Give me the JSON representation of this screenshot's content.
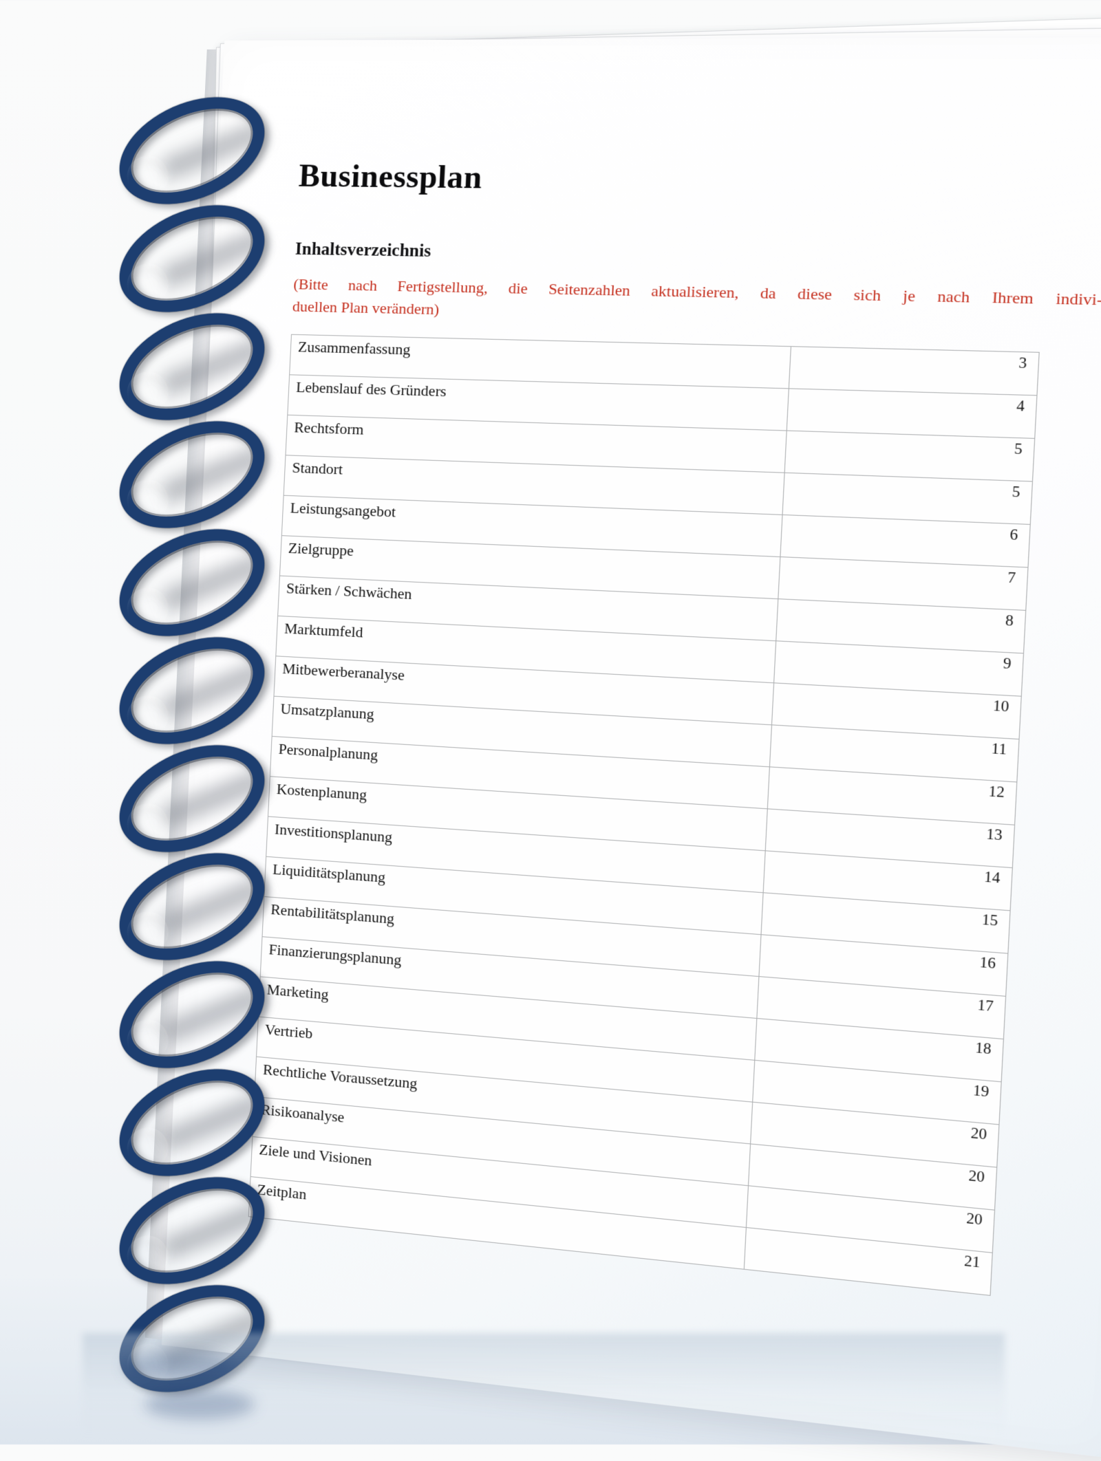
{
  "document": {
    "title": "Businessplan",
    "toc_heading": "Inhaltsverzeichnis",
    "note": {
      "line1": "(Bitte nach Fertigstellung, die Seitenzahlen aktualisieren, da diese sich je nach Ihrem indivi-",
      "line2": "duellen Plan verändern)",
      "color": "#c5301f"
    }
  },
  "toc": {
    "entries": [
      {
        "label": "Zusammenfassung",
        "page": "3"
      },
      {
        "label": "Lebenslauf des Gründers",
        "page": "4"
      },
      {
        "label": "Rechtsform",
        "page": "5"
      },
      {
        "label": "Standort",
        "page": "5"
      },
      {
        "label": "Leistungsangebot",
        "page": "6"
      },
      {
        "label": "Zielgruppe",
        "page": "7"
      },
      {
        "label": "Stärken / Schwächen",
        "page": "8"
      },
      {
        "label": "Marktumfeld",
        "page": "9"
      },
      {
        "label": "Mitbewerberanalyse",
        "page": "10"
      },
      {
        "label": "Umsatzplanung",
        "page": "11"
      },
      {
        "label": "Personalplanung",
        "page": "12"
      },
      {
        "label": "Kostenplanung",
        "page": "13"
      },
      {
        "label": "Investitionsplanung",
        "page": "14"
      },
      {
        "label": "Liquiditätsplanung",
        "page": "15"
      },
      {
        "label": "Rentabilitätsplanung",
        "page": "16"
      },
      {
        "label": "Finanzierungsplanung",
        "page": "17"
      },
      {
        "label": "Marketing",
        "page": "18"
      },
      {
        "label": "Vertrieb",
        "page": "19"
      },
      {
        "label": "Rechtliche Voraussetzung",
        "page": "20"
      },
      {
        "label": "Risikoanalyse",
        "page": "20"
      },
      {
        "label": "Ziele und Visionen",
        "page": "20"
      },
      {
        "label": "Zeitplan",
        "page": "21"
      }
    ]
  },
  "binding": {
    "coil_color": "#1d3e70",
    "coil_count": 12
  }
}
